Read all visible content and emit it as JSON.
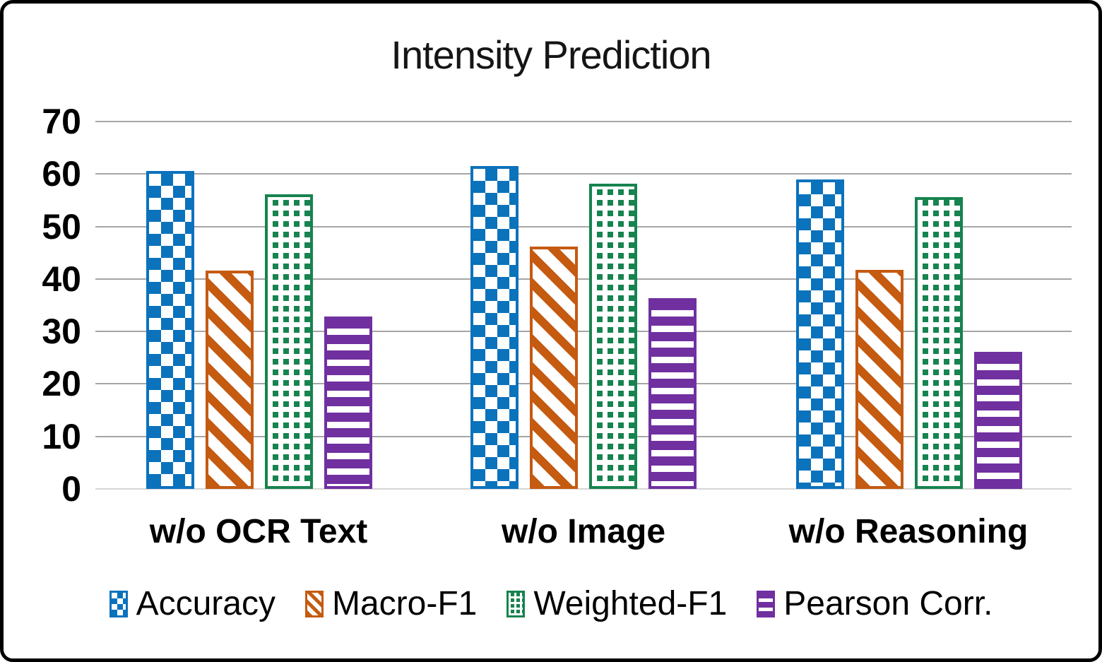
{
  "chart_data": {
    "type": "bar",
    "title": "Intensity Prediction",
    "categories": [
      "w/o OCR Text",
      "w/o Image",
      "w/o Reasoning"
    ],
    "series": [
      {
        "name": "Accuracy",
        "color": "#0b72bc",
        "pattern": "blue-checkerboard",
        "values": [
          60.6,
          61.5,
          59.0
        ]
      },
      {
        "name": "Macro-F1",
        "color": "#c55a11",
        "pattern": "orange-diagonal-stripes",
        "values": [
          41.6,
          46.2,
          41.7
        ]
      },
      {
        "name": "Weighted-F1",
        "color": "#17834f",
        "pattern": "green-dotted-squares",
        "values": [
          56.2,
          58.2,
          55.6
        ]
      },
      {
        "name": "Pearson Corr.",
        "color": "#7030a0",
        "pattern": "purple-horizontal-stripes",
        "values": [
          32.9,
          36.3,
          26.1
        ]
      }
    ],
    "ylim": [
      0,
      70
    ],
    "yticks": [
      "0",
      "10",
      "20",
      "30",
      "40",
      "50",
      "60",
      "70"
    ],
    "grid": true,
    "grid_color": "#a6a6a6",
    "legend_position": "bottom"
  }
}
